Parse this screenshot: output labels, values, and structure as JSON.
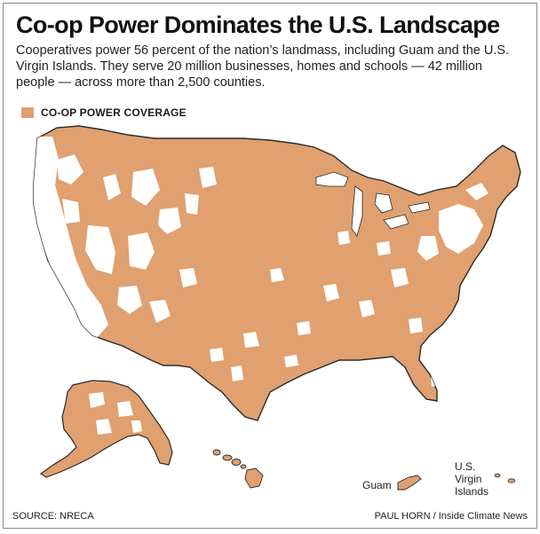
{
  "title": "Co-op Power Dominates the U.S. Landscape",
  "subtitle": "Cooperatives power 56 percent of the nation’s landmass, including Guam and the U.S. Virgin Islands. They serve 20 million businesses, homes and schools — 42 million people — across more than 2,500 counties.",
  "legend": {
    "label": "CO-OP POWER COVERAGE",
    "color": "#e0a070"
  },
  "colors": {
    "coverage": "#e0a070",
    "land_uncovered": "#ffffff",
    "outline": "#2b2b2b"
  },
  "map_labels": {
    "guam": "Guam",
    "virgin_islands": [
      "U.S.",
      "Virgin",
      "Islands"
    ]
  },
  "footer": {
    "source": "SOURCE: NRECA",
    "credit": "PAUL HORN / Inside Climate News"
  }
}
